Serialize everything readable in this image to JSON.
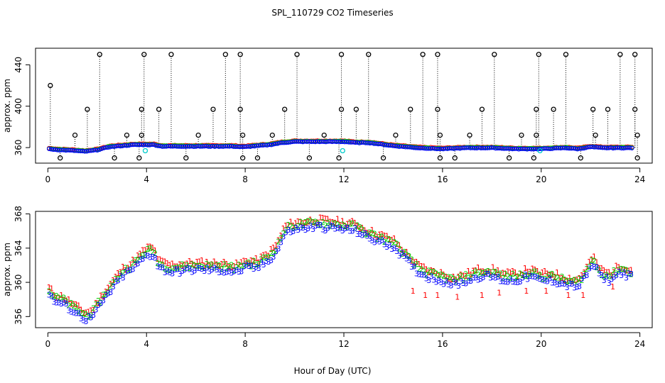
{
  "figure_title": "SPL_110729  CO2 Timeseries",
  "chart_data": [
    {
      "type": "scatter",
      "id": "top",
      "title": "SPL_110729  CO2 Timeseries",
      "xlabel": "",
      "ylabel": "approx. ppm",
      "xlim": [
        -0.5,
        24.5
      ],
      "ylim": [
        345,
        456
      ],
      "xticks": [
        0,
        4,
        8,
        12,
        16,
        20,
        24
      ],
      "yticks": [
        360,
        400,
        440
      ],
      "xtick_labels": [
        "0",
        "4",
        "8",
        "12",
        "16",
        "20",
        "24"
      ],
      "ytick_labels": [
        "360",
        "400",
        "440"
      ],
      "colors": {
        "series1": "#ff0000",
        "series2": "#00cc00",
        "series3": "#0000ff",
        "flag": "#000000",
        "cyan": "#00cccc"
      },
      "baseline_knots": [
        [
          0,
          359
        ],
        [
          0.5,
          358
        ],
        [
          1.0,
          357.5
        ],
        [
          1.5,
          356.5
        ],
        [
          2.0,
          358
        ],
        [
          2.5,
          361
        ],
        [
          3.0,
          362
        ],
        [
          3.5,
          363
        ],
        [
          4.0,
          363
        ],
        [
          4.3,
          363
        ],
        [
          4.6,
          361.5
        ],
        [
          6.0,
          361.5
        ],
        [
          7.5,
          361.5
        ],
        [
          7.8,
          361
        ],
        [
          8.0,
          361
        ],
        [
          8.5,
          362
        ],
        [
          9.0,
          363
        ],
        [
          9.5,
          365
        ],
        [
          10.0,
          366
        ],
        [
          11.0,
          366
        ],
        [
          12.0,
          366
        ],
        [
          12.5,
          365
        ],
        [
          13.0,
          365
        ],
        [
          14.0,
          362
        ],
        [
          15.0,
          360
        ],
        [
          16.0,
          359
        ],
        [
          17.0,
          360
        ],
        [
          18.0,
          360
        ],
        [
          19.0,
          359
        ],
        [
          20.0,
          359
        ],
        [
          21.0,
          360
        ],
        [
          21.5,
          359
        ],
        [
          22.0,
          361
        ],
        [
          22.5,
          360
        ],
        [
          23.0,
          360
        ],
        [
          23.7,
          360
        ]
      ],
      "spikes": [
        {
          "x": 0.1,
          "y": 420,
          "top": 420
        },
        {
          "x": 0.5,
          "y": 350,
          "top": 360
        },
        {
          "x": 1.1,
          "y": 372,
          "top": 372
        },
        {
          "x": 1.6,
          "y": 397,
          "top": 397
        },
        {
          "x": 2.1,
          "y": 450,
          "top": 450
        },
        {
          "x": 2.7,
          "y": 350,
          "top": 362
        },
        {
          "x": 3.2,
          "y": 372,
          "top": 372
        },
        {
          "x": 3.8,
          "y": 397,
          "top": 397
        },
        {
          "x": 3.9,
          "y": 450,
          "top": 450
        },
        {
          "x": 3.8,
          "y": 372,
          "top": 372
        },
        {
          "x": 3.7,
          "y": 350,
          "top": 362
        },
        {
          "x": 4.5,
          "y": 397,
          "top": 397
        },
        {
          "x": 5.0,
          "y": 450,
          "top": 450
        },
        {
          "x": 5.6,
          "y": 350,
          "top": 362
        },
        {
          "x": 6.1,
          "y": 372,
          "top": 372
        },
        {
          "x": 6.7,
          "y": 397,
          "top": 397
        },
        {
          "x": 7.2,
          "y": 450,
          "top": 450
        },
        {
          "x": 7.8,
          "y": 450,
          "top": 450
        },
        {
          "x": 7.8,
          "y": 397,
          "top": 397
        },
        {
          "x": 7.9,
          "y": 372,
          "top": 372
        },
        {
          "x": 7.9,
          "y": 350,
          "top": 362
        },
        {
          "x": 8.5,
          "y": 350,
          "top": 362
        },
        {
          "x": 9.1,
          "y": 372,
          "top": 372
        },
        {
          "x": 9.6,
          "y": 397,
          "top": 397
        },
        {
          "x": 10.1,
          "y": 450,
          "top": 450
        },
        {
          "x": 10.6,
          "y": 350,
          "top": 365
        },
        {
          "x": 11.2,
          "y": 372,
          "top": 372
        },
        {
          "x": 11.8,
          "y": 350,
          "top": 365
        },
        {
          "x": 11.9,
          "y": 397,
          "top": 397
        },
        {
          "x": 11.9,
          "y": 450,
          "top": 450
        },
        {
          "x": 12.5,
          "y": 397,
          "top": 397
        },
        {
          "x": 13.0,
          "y": 450,
          "top": 450
        },
        {
          "x": 13.6,
          "y": 350,
          "top": 364
        },
        {
          "x": 14.1,
          "y": 372,
          "top": 372
        },
        {
          "x": 14.7,
          "y": 397,
          "top": 397
        },
        {
          "x": 15.2,
          "y": 450,
          "top": 450
        },
        {
          "x": 15.8,
          "y": 450,
          "top": 450
        },
        {
          "x": 15.8,
          "y": 397,
          "top": 397
        },
        {
          "x": 15.9,
          "y": 372,
          "top": 372
        },
        {
          "x": 15.9,
          "y": 350,
          "top": 360
        },
        {
          "x": 16.5,
          "y": 350,
          "top": 360
        },
        {
          "x": 17.1,
          "y": 372,
          "top": 372
        },
        {
          "x": 17.6,
          "y": 397,
          "top": 397
        },
        {
          "x": 18.1,
          "y": 450,
          "top": 450
        },
        {
          "x": 18.7,
          "y": 350,
          "top": 360
        },
        {
          "x": 19.2,
          "y": 372,
          "top": 372
        },
        {
          "x": 19.7,
          "y": 350,
          "top": 360
        },
        {
          "x": 19.8,
          "y": 372,
          "top": 372
        },
        {
          "x": 19.8,
          "y": 397,
          "top": 397
        },
        {
          "x": 19.9,
          "y": 450,
          "top": 450
        },
        {
          "x": 20.5,
          "y": 397,
          "top": 397
        },
        {
          "x": 21.0,
          "y": 450,
          "top": 450
        },
        {
          "x": 21.6,
          "y": 350,
          "top": 360
        },
        {
          "x": 22.1,
          "y": 397,
          "top": 397
        },
        {
          "x": 22.2,
          "y": 372,
          "top": 372
        },
        {
          "x": 22.7,
          "y": 397,
          "top": 397
        },
        {
          "x": 23.2,
          "y": 450,
          "top": 450
        },
        {
          "x": 23.8,
          "y": 450,
          "top": 450
        },
        {
          "x": 23.8,
          "y": 397,
          "top": 397
        },
        {
          "x": 23.9,
          "y": 372,
          "top": 372
        },
        {
          "x": 23.9,
          "y": 350,
          "top": 360
        }
      ],
      "cyan_points": [
        [
          3.95,
          357
        ],
        [
          11.95,
          357
        ],
        [
          19.95,
          357
        ]
      ]
    },
    {
      "type": "scatter",
      "id": "bottom",
      "title": "",
      "xlabel": "Hour of Day (UTC)",
      "ylabel": "approx. ppm",
      "xlim": [
        -0.5,
        24.5
      ],
      "ylim": [
        354.7,
        368.3
      ],
      "xticks": [
        0,
        4,
        8,
        12,
        16,
        20,
        24
      ],
      "yticks": [
        356,
        360,
        364,
        368
      ],
      "xtick_labels": [
        "0",
        "4",
        "8",
        "12",
        "16",
        "20",
        "24"
      ],
      "ytick_labels": [
        "356",
        "360",
        "364",
        "368"
      ],
      "series": [
        {
          "name": "1",
          "label": "1",
          "color": "#ff0000",
          "offset": 0.5
        },
        {
          "name": "2",
          "label": "2",
          "color": "#00cc00",
          "offset": 0.2
        },
        {
          "name": "3",
          "label": "3",
          "color": "#0000ff",
          "offset": -0.3
        }
      ],
      "knots": [
        [
          0,
          359
        ],
        [
          0.3,
          358
        ],
        [
          0.6,
          357.8
        ],
        [
          1.0,
          357
        ],
        [
          1.5,
          356
        ],
        [
          1.8,
          356.2
        ],
        [
          2.2,
          358
        ],
        [
          2.6,
          359.5
        ],
        [
          3.0,
          361
        ],
        [
          3.5,
          362
        ],
        [
          4.0,
          363.5
        ],
        [
          4.3,
          363.5
        ],
        [
          4.5,
          362
        ],
        [
          5.0,
          361.5
        ],
        [
          6.0,
          361.8
        ],
        [
          7.0,
          361.7
        ],
        [
          7.7,
          361.5
        ],
        [
          8.0,
          362
        ],
        [
          8.5,
          362
        ],
        [
          9.0,
          363
        ],
        [
          9.3,
          364
        ],
        [
          9.6,
          366
        ],
        [
          10.0,
          366.5
        ],
        [
          11.0,
          366.8
        ],
        [
          12.0,
          366.5
        ],
        [
          12.5,
          366.3
        ],
        [
          13.0,
          365.5
        ],
        [
          13.5,
          365
        ],
        [
          14.0,
          364.5
        ],
        [
          14.5,
          363
        ],
        [
          15.0,
          361.5
        ],
        [
          15.5,
          360.8
        ],
        [
          16.0,
          360.5
        ],
        [
          16.5,
          360
        ],
        [
          17.0,
          360.5
        ],
        [
          17.5,
          361
        ],
        [
          18.0,
          361
        ],
        [
          18.5,
          360.5
        ],
        [
          19.0,
          360.5
        ],
        [
          19.5,
          361
        ],
        [
          20.0,
          360.5
        ],
        [
          20.5,
          360.5
        ],
        [
          21.0,
          360
        ],
        [
          21.5,
          359.8
        ],
        [
          21.8,
          361
        ],
        [
          22.1,
          362.5
        ],
        [
          22.4,
          361
        ],
        [
          22.8,
          360.5
        ],
        [
          23.2,
          361.5
        ],
        [
          23.6,
          361
        ],
        [
          23.7,
          361
        ]
      ],
      "dropouts": [
        [
          14.8,
          359
        ],
        [
          15.3,
          358.5
        ],
        [
          15.8,
          358.5
        ],
        [
          16.6,
          358.3
        ],
        [
          17.6,
          358.5
        ],
        [
          18.3,
          358.8
        ],
        [
          19.4,
          359
        ],
        [
          20.2,
          359
        ],
        [
          21.1,
          358.5
        ],
        [
          21.7,
          358.5
        ],
        [
          22.9,
          359.5
        ]
      ]
    }
  ]
}
